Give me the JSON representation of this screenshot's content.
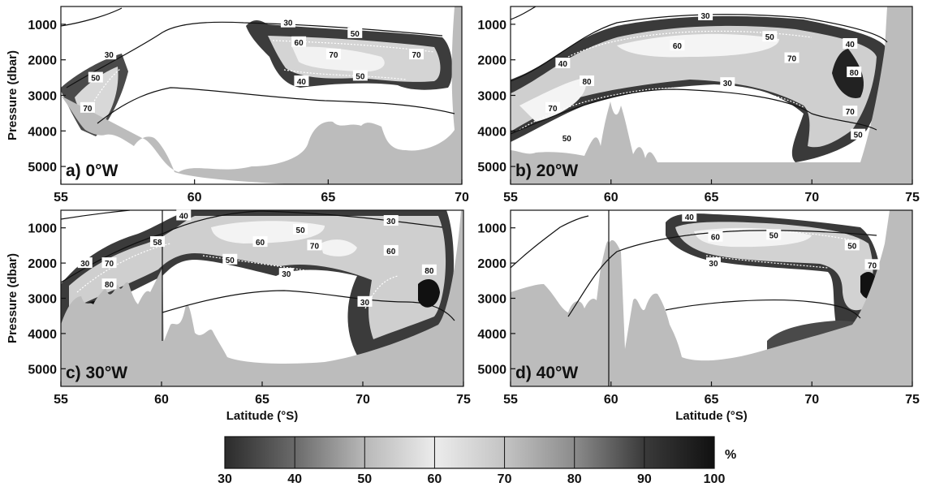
{
  "chart_data": [
    {
      "type": "contour",
      "panel_label": "a) 0°W",
      "xlabel": "",
      "ylabel": "Pressure (dbar)",
      "xlim": [
        55,
        70
      ],
      "ylim": [
        500,
        5500
      ],
      "xticks": [
        "55",
        "60",
        "65",
        "70"
      ],
      "yticks": [
        "1000",
        "2000",
        "3000",
        "4000",
        "5000"
      ],
      "contour_labels": [
        {
          "value": "30",
          "x": 56.8,
          "y": 1850
        },
        {
          "value": "50",
          "x": 56.3,
          "y": 2500
        },
        {
          "value": "70",
          "x": 56.0,
          "y": 3350
        },
        {
          "value": "30",
          "x": 63.5,
          "y": 950
        },
        {
          "value": "60",
          "x": 63.9,
          "y": 1500
        },
        {
          "value": "50",
          "x": 66.0,
          "y": 1250
        },
        {
          "value": "70",
          "x": 65.2,
          "y": 1850
        },
        {
          "value": "70",
          "x": 68.3,
          "y": 1850
        },
        {
          "value": "50",
          "x": 66.2,
          "y": 2450
        },
        {
          "value": "40",
          "x": 64.0,
          "y": 2600
        }
      ]
    },
    {
      "type": "contour",
      "panel_label": "b) 20°W",
      "xlabel": "",
      "ylabel": "",
      "xlim": [
        55,
        75
      ],
      "ylim": [
        500,
        5500
      ],
      "xticks": [
        "55",
        "60",
        "65",
        "70",
        "75"
      ],
      "yticks": [
        "1000",
        "2000",
        "3000",
        "4000",
        "5000"
      ],
      "contour_labels": [
        {
          "value": "30",
          "x": 64.7,
          "y": 750
        },
        {
          "value": "50",
          "x": 67.9,
          "y": 1350
        },
        {
          "value": "40",
          "x": 71.9,
          "y": 1550
        },
        {
          "value": "60",
          "x": 63.3,
          "y": 1600
        },
        {
          "value": "70",
          "x": 69.0,
          "y": 1950
        },
        {
          "value": "80",
          "x": 72.1,
          "y": 2350
        },
        {
          "value": "30",
          "x": 65.8,
          "y": 2650
        },
        {
          "value": "40",
          "x": 57.6,
          "y": 2100
        },
        {
          "value": "80",
          "x": 58.8,
          "y": 2600
        },
        {
          "value": "70",
          "x": 57.1,
          "y": 3350
        },
        {
          "value": "70",
          "x": 71.9,
          "y": 3450
        },
        {
          "value": "50",
          "x": 57.8,
          "y": 4200
        },
        {
          "value": "50",
          "x": 72.3,
          "y": 4100
        }
      ]
    },
    {
      "type": "contour",
      "panel_label": "c) 30°W",
      "xlabel": "Latitude (°S)",
      "ylabel": "Pressure (dbar)",
      "xlim": [
        55,
        75
      ],
      "ylim": [
        500,
        5500
      ],
      "xticks": [
        "55",
        "60",
        "65",
        "70",
        "75"
      ],
      "yticks": [
        "1000",
        "2000",
        "3000",
        "4000",
        "5000"
      ],
      "contour_labels": [
        {
          "value": "40",
          "x": 61.1,
          "y": 650
        },
        {
          "value": "50",
          "x": 66.9,
          "y": 1050
        },
        {
          "value": "30",
          "x": 71.4,
          "y": 800
        },
        {
          "value": "58",
          "x": 59.8,
          "y": 1400
        },
        {
          "value": "60",
          "x": 64.9,
          "y": 1400
        },
        {
          "value": "70",
          "x": 67.6,
          "y": 1500
        },
        {
          "value": "60",
          "x": 71.4,
          "y": 1650
        },
        {
          "value": "30",
          "x": 56.2,
          "y": 2000
        },
        {
          "value": "70",
          "x": 57.4,
          "y": 2000
        },
        {
          "value": "50",
          "x": 63.4,
          "y": 1900
        },
        {
          "value": "30",
          "x": 66.2,
          "y": 2300
        },
        {
          "value": "80",
          "x": 73.3,
          "y": 2200
        },
        {
          "value": "80",
          "x": 57.4,
          "y": 2600
        },
        {
          "value": "30",
          "x": 70.1,
          "y": 3100
        }
      ]
    },
    {
      "type": "contour",
      "panel_label": "d) 40°W",
      "xlabel": "Latitude (°S)",
      "ylabel": "",
      "xlim": [
        55,
        75
      ],
      "ylim": [
        500,
        5500
      ],
      "xticks": [
        "55",
        "60",
        "65",
        "70",
        "75"
      ],
      "yticks": [
        "1000",
        "2000",
        "3000",
        "4000",
        "5000"
      ],
      "contour_labels": [
        {
          "value": "40",
          "x": 63.9,
          "y": 680
        },
        {
          "value": "60",
          "x": 65.2,
          "y": 1250
        },
        {
          "value": "50",
          "x": 68.1,
          "y": 1200
        },
        {
          "value": "30",
          "x": 65.1,
          "y": 2000
        },
        {
          "value": "50",
          "x": 72.0,
          "y": 1500
        },
        {
          "value": "70",
          "x": 73.0,
          "y": 2050
        }
      ]
    }
  ],
  "colorbar": {
    "ticks": [
      "30",
      "40",
      "50",
      "60",
      "70",
      "80",
      "90",
      "100"
    ],
    "unit": "%",
    "range": [
      30,
      100
    ]
  }
}
